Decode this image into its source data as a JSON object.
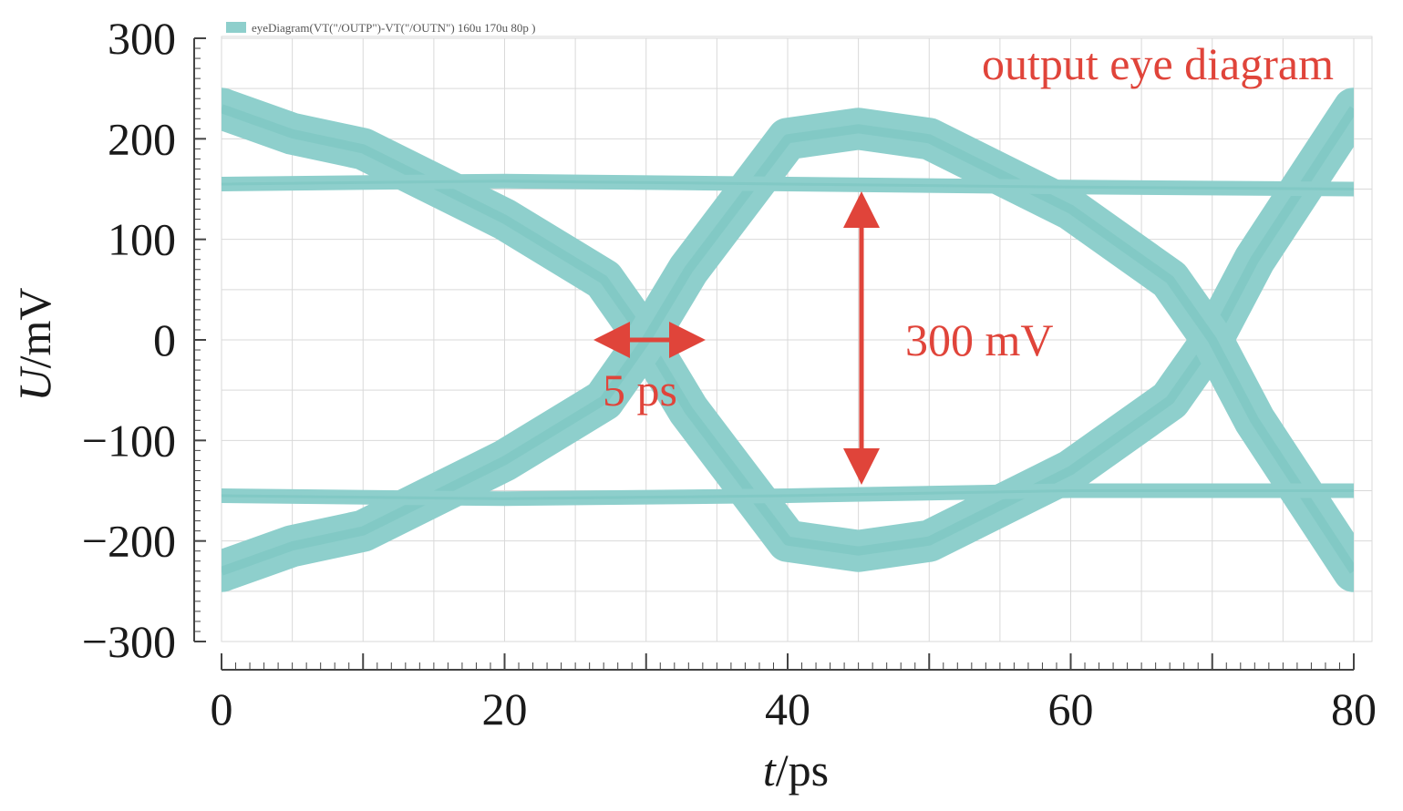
{
  "colors": {
    "eye": "#8ecfcc",
    "eye_dark": "#79c4c0",
    "annotation": "#e0443a",
    "grid": "#d9d9d9",
    "axis": "#444444"
  },
  "chart_data": {
    "type": "line",
    "legend": {
      "label": "eyeDiagram(VT(\"/OUTP\")-VT(\"/OUTN\") 160u 170u 80p  )",
      "position": "top-left"
    },
    "xlabel_italic": "t",
    "xlabel_unit": "/ps",
    "ylabel_italic": "U",
    "ylabel_unit": "/mV",
    "xlim": [
      0,
      80
    ],
    "ylim": [
      -300,
      300
    ],
    "xticks": [
      0,
      20,
      40,
      60,
      80
    ],
    "yticks": [
      300,
      200,
      100,
      0,
      -100,
      -200,
      -300
    ],
    "ytick_labels": [
      "300",
      "200",
      "100",
      "0",
      "−100",
      "−200",
      "−300"
    ],
    "grid": true,
    "annotations": {
      "title": "output eye diagram",
      "eye_height": "300 mV",
      "jitter": "5 ps"
    },
    "series": [
      {
        "x": [
          0,
          5,
          10,
          20,
          27,
          30,
          33,
          40,
          45,
          50,
          60,
          67,
          70,
          73,
          80
        ],
        "y": [
          230,
          205,
          190,
          120,
          60,
          0,
          -70,
          -200,
          -210,
          -200,
          -130,
          -60,
          0,
          80,
          230
        ]
      },
      {
        "x": [
          0,
          5,
          10,
          20,
          27,
          30,
          33,
          40,
          45,
          50,
          60,
          67,
          70,
          73,
          80
        ],
        "y": [
          -230,
          -205,
          -190,
          -120,
          -60,
          0,
          70,
          200,
          210,
          200,
          130,
          60,
          0,
          -80,
          -230
        ]
      },
      {
        "x": [
          0,
          20,
          40,
          60,
          80
        ],
        "y": [
          155,
          158,
          155,
          152,
          150
        ]
      },
      {
        "x": [
          0,
          20,
          40,
          60,
          80
        ],
        "y": [
          -155,
          -158,
          -155,
          -150,
          -150
        ]
      }
    ]
  }
}
